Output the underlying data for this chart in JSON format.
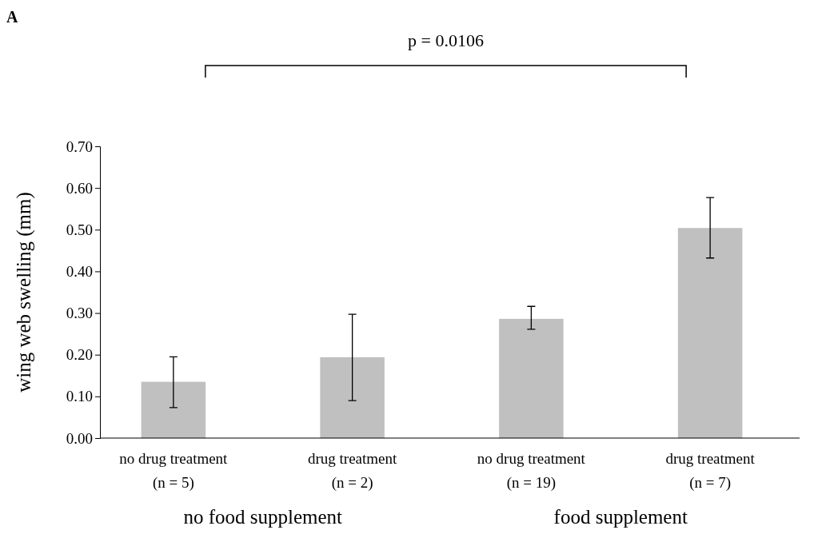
{
  "chart_data": {
    "type": "bar",
    "ylabel": "wing web swelling (mm)",
    "categories": [
      "no drug treatment\n(n = 5)",
      "drug treatment\n(n = 2)",
      "no drug treatment\n(n = 19)",
      "drug treatment\n(n = 7)"
    ],
    "values": [
      0.135,
      0.194,
      0.286,
      0.504
    ],
    "errors": [
      [
        0.073,
        0.195
      ],
      [
        0.09,
        0.297
      ],
      [
        0.261,
        0.316
      ],
      [
        0.432,
        0.577
      ]
    ],
    "color": "#c0c0c0",
    "ylim": [
      0,
      0.7
    ],
    "yticks": [
      {
        "value": 0,
        "label": "0.00"
      },
      {
        "value": 0.1,
        "label": "0.10"
      },
      {
        "value": 0.2,
        "label": "0.20"
      },
      {
        "value": 0.3,
        "label": "0.30"
      },
      {
        "value": 0.4,
        "label": "0.40"
      },
      {
        "value": 0.5,
        "label": "0.50"
      },
      {
        "value": 0.6,
        "label": "0.60"
      },
      {
        "value": 0.7,
        "label": "0.70"
      }
    ],
    "grid": false,
    "annotations": [
      "A",
      "p = 0.0106",
      "no food supplement",
      "food supplement"
    ]
  }
}
